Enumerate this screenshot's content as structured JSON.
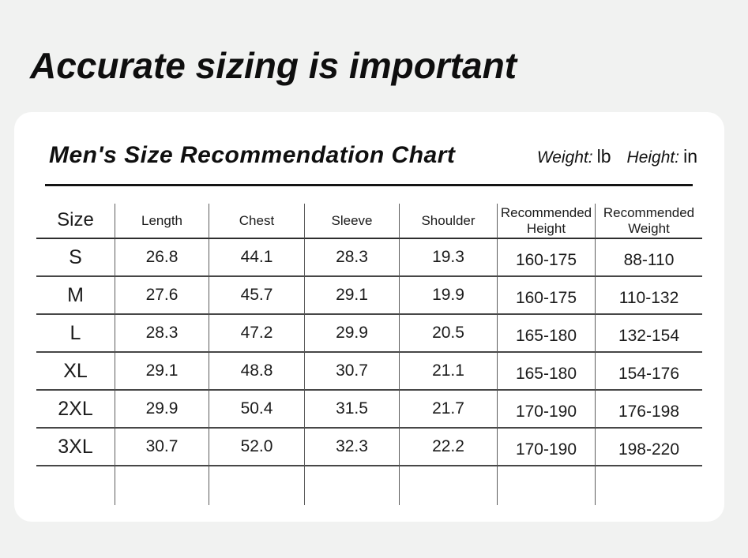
{
  "page": {
    "headline": "Accurate sizing is important"
  },
  "card": {
    "title": "Men's Size Recommendation Chart",
    "units": [
      {
        "label": "Weight:",
        "value": "lb"
      },
      {
        "label": "Height:",
        "value": "in"
      }
    ]
  },
  "table": {
    "headers": [
      "Size",
      "Length",
      "Chest",
      "Sleeve",
      "Shoulder",
      "Recommended Height",
      "Recommended Weight"
    ],
    "rows": [
      {
        "cells": [
          "S",
          "26.8",
          "44.1",
          "28.3",
          "19.3",
          "160-175",
          "88-110"
        ]
      },
      {
        "cells": [
          "M",
          "27.6",
          "45.7",
          "29.1",
          "19.9",
          "160-175",
          "110-132"
        ]
      },
      {
        "cells": [
          "L",
          "28.3",
          "47.2",
          "29.9",
          "20.5",
          "165-180",
          "132-154"
        ]
      },
      {
        "cells": [
          "XL",
          "29.1",
          "48.8",
          "30.7",
          "21.1",
          "165-180",
          "154-176"
        ]
      },
      {
        "cells": [
          "2XL",
          "29.9",
          "50.4",
          "31.5",
          "21.7",
          "170-190",
          "176-198"
        ]
      },
      {
        "cells": [
          "3XL",
          "30.7",
          "52.0",
          "32.3",
          "22.2",
          "170-190",
          "198-220"
        ]
      }
    ]
  }
}
